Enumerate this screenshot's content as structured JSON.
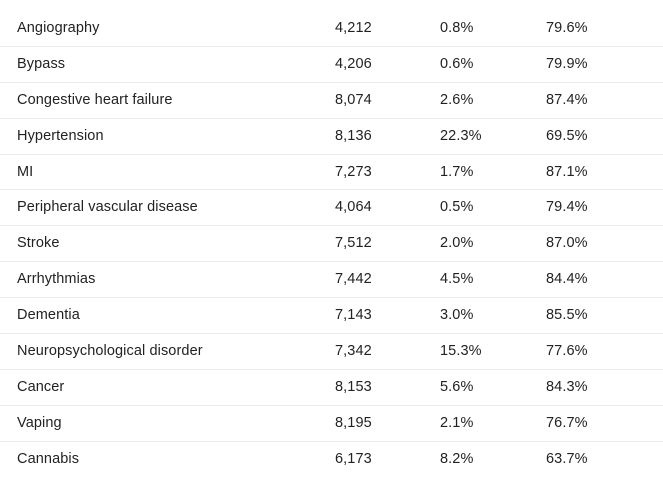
{
  "table": {
    "rows": [
      {
        "name": "Angiography",
        "n": "4,212",
        "pct1": "0.8%",
        "pct2": "79.6%"
      },
      {
        "name": "Bypass",
        "n": "4,206",
        "pct1": "0.6%",
        "pct2": "79.9%"
      },
      {
        "name": "Congestive heart failure",
        "n": "8,074",
        "pct1": "2.6%",
        "pct2": "87.4%"
      },
      {
        "name": "Hypertension",
        "n": "8,136",
        "pct1": "22.3%",
        "pct2": "69.5%"
      },
      {
        "name": "MI",
        "n": "7,273",
        "pct1": "1.7%",
        "pct2": "87.1%"
      },
      {
        "name": "Peripheral vascular disease",
        "n": "4,064",
        "pct1": "0.5%",
        "pct2": "79.4%"
      },
      {
        "name": "Stroke",
        "n": "7,512",
        "pct1": "2.0%",
        "pct2": "87.0%"
      },
      {
        "name": "Arrhythmias",
        "n": "7,442",
        "pct1": "4.5%",
        "pct2": "84.4%"
      },
      {
        "name": "Dementia",
        "n": "7,143",
        "pct1": "3.0%",
        "pct2": "85.5%"
      },
      {
        "name": "Neuropsychological disorder",
        "n": "7,342",
        "pct1": "15.3%",
        "pct2": "77.6%"
      },
      {
        "name": "Cancer",
        "n": "8,153",
        "pct1": "5.6%",
        "pct2": "84.3%"
      },
      {
        "name": "Vaping",
        "n": "8,195",
        "pct1": "2.1%",
        "pct2": "76.7%"
      },
      {
        "name": "Cannabis",
        "n": "6,173",
        "pct1": "8.2%",
        "pct2": "63.7%"
      }
    ]
  }
}
